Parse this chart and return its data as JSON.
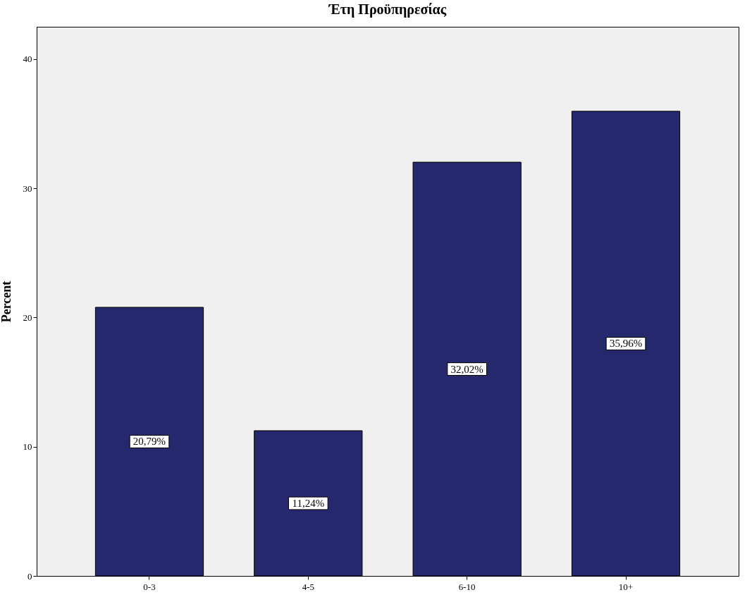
{
  "chart_data": {
    "type": "bar",
    "title": "Έτη Προϋπηρεσίας",
    "ylabel": "Percent",
    "categories": [
      "0-3",
      "4-5",
      "6-10",
      "10+"
    ],
    "values": [
      20.79,
      11.24,
      32.02,
      35.96
    ],
    "value_labels": [
      "20,79%",
      "11,24%",
      "32,02%",
      "35,96%"
    ],
    "color": "#26286e",
    "ylim": [
      0,
      42.5
    ],
    "yticks": [
      0,
      10,
      20,
      30,
      40
    ],
    "grid": false
  }
}
